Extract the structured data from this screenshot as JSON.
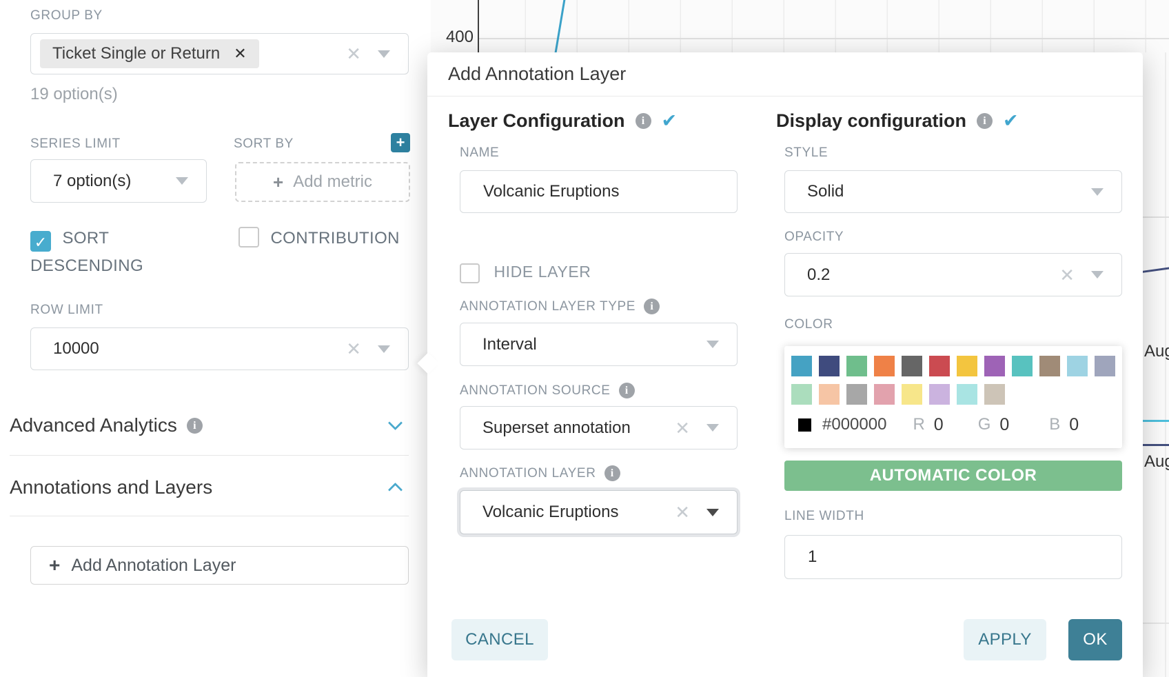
{
  "chart_background": {
    "y_axis_tick": "400",
    "x_axis_label_1": "Aug",
    "x_axis_label_2": "Aug",
    "line_colors": {
      "main_series": "#3BA2C9",
      "navy_series": "#44507F",
      "cyan_series": "#4EC0DD"
    }
  },
  "control_panel": {
    "group_by": {
      "label": "GROUP BY",
      "selected_tag": "Ticket Single or Return",
      "hint": "19 option(s)"
    },
    "series_limit": {
      "label": "SERIES LIMIT",
      "value": "7 option(s)"
    },
    "sort_by": {
      "label": "SORT BY",
      "placeholder": "Add metric"
    },
    "sort_descending": {
      "label": "SORT DESCENDING",
      "checked": true
    },
    "contribution": {
      "label": "CONTRIBUTION",
      "checked": false
    },
    "row_limit": {
      "label": "ROW LIMIT",
      "value": "10000"
    },
    "advanced_analytics": {
      "title": "Advanced Analytics"
    },
    "annotations_layers": {
      "title": "Annotations and Layers"
    },
    "add_annotation_layer_button": "Add Annotation Layer"
  },
  "modal": {
    "title": "Add Annotation Layer",
    "layer_configuration": {
      "heading": "Layer Configuration",
      "name_label": "NAME",
      "name_value": "Volcanic Eruptions",
      "hide_layer_label": "HIDE LAYER",
      "annotation_layer_type_label": "ANNOTATION LAYER TYPE",
      "annotation_layer_type_value": "Interval",
      "annotation_source_label": "ANNOTATION SOURCE",
      "annotation_source_value": "Superset annotation",
      "annotation_layer_label": "ANNOTATION LAYER",
      "annotation_layer_value": "Volcanic Eruptions"
    },
    "display_configuration": {
      "heading": "Display configuration",
      "style_label": "STYLE",
      "style_value": "Solid",
      "opacity_label": "OPACITY",
      "opacity_value": "0.2",
      "color_label": "COLOR",
      "color_picker": {
        "swatches_row1": [
          "#45A2C3",
          "#3F4B7E",
          "#6FBE8C",
          "#EF8147",
          "#666666",
          "#CB4B51",
          "#F3C53F",
          "#9E63B6",
          "#58C2BF",
          "#A08B77",
          "#9ED3E3",
          "#9FA5BC"
        ],
        "swatches_row2": [
          "#ABDDBD",
          "#F6C5A5",
          "#A7A7A7",
          "#E2A2AD",
          "#F7E68A",
          "#CBB3DF",
          "#A9E4E3",
          "#CDC4B7"
        ],
        "current_hex": "#000000",
        "r_label": "R",
        "r_value": "0",
        "g_label": "G",
        "g_value": "0",
        "b_label": "B",
        "b_value": "0"
      },
      "automatic_color_button": "AUTOMATIC COLOR",
      "line_width_label": "LINE WIDTH",
      "line_width_value": "1"
    },
    "footer": {
      "cancel": "CANCEL",
      "apply": "APPLY",
      "ok": "OK"
    }
  },
  "accent_colors": {
    "primary_blue": "#47A9CC",
    "teal_button": "#3E8096",
    "green_button": "#7CBF8E",
    "light_button_bg": "#E9F3F6",
    "light_button_text": "#37768C"
  }
}
